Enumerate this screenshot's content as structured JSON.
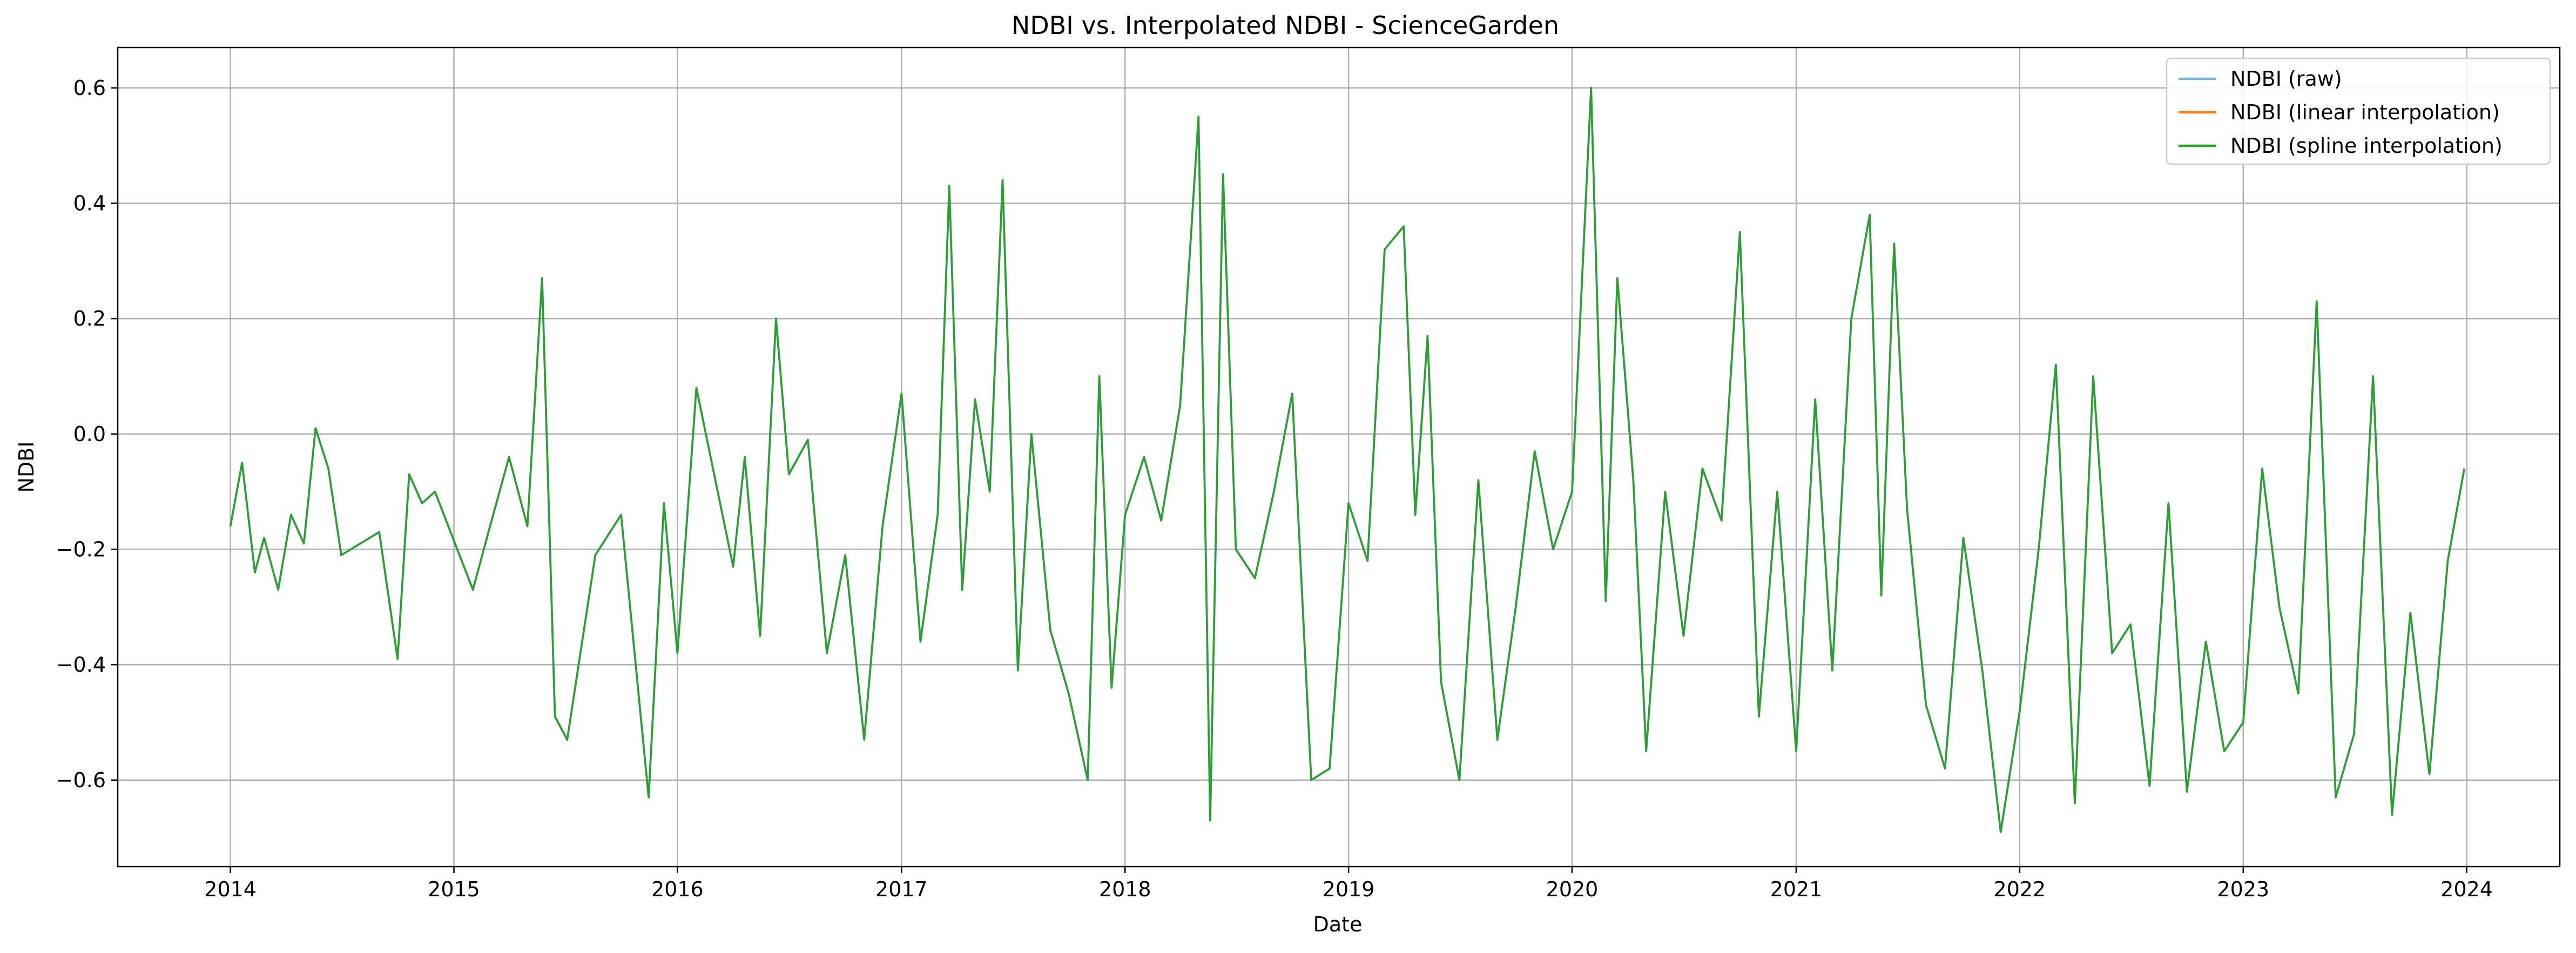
{
  "chart_data": {
    "type": "line",
    "title": "NDBI vs. Interpolated NDBI - ScienceGarden",
    "xlabel": "Date",
    "ylabel": "NDBI",
    "x_axis_type": "date",
    "xlim": [
      "2013-07-01",
      "2024-06-01"
    ],
    "ylim": [
      -0.75,
      0.67
    ],
    "x_ticks": [
      "2014",
      "2015",
      "2016",
      "2017",
      "2018",
      "2019",
      "2020",
      "2021",
      "2022",
      "2023",
      "2024"
    ],
    "y_ticks": [
      -0.6,
      -0.4,
      -0.2,
      0.0,
      0.2,
      0.4,
      0.6
    ],
    "y_tick_labels": [
      "−0.6",
      "−0.4",
      "−0.2",
      "0.0",
      "0.2",
      "0.4",
      "0.6"
    ],
    "grid": true,
    "legend_position": "top-right",
    "series_colors": {
      "raw": "#7ab3dd",
      "linear": "#ff7f0e",
      "spline": "#2ca02c"
    },
    "series": [
      {
        "name": "NDBI (raw)",
        "key": "raw",
        "x": [
          "2014-01-01",
          "2014-01-20",
          "2014-02-10",
          "2014-02-25",
          "2014-03-20",
          "2014-04-10",
          "2014-05-01",
          "2014-05-20",
          "2014-06-10",
          "2014-07-01",
          "2014-09-01",
          "2014-10-01",
          "2014-10-20",
          "2014-11-10",
          "2014-12-01",
          "2015-02-01",
          "2015-03-01",
          "2015-04-01",
          "2015-05-01",
          "2015-05-25",
          "2015-06-15",
          "2015-07-05",
          "2015-08-20",
          "2015-10-01",
          "2015-11-15",
          "2015-12-10",
          "2016-01-01",
          "2016-02-01",
          "2016-03-01",
          "2016-04-01",
          "2016-04-20",
          "2016-05-15",
          "2016-06-10",
          "2016-07-01",
          "2016-08-01",
          "2016-09-01",
          "2016-10-01",
          "2016-11-01",
          "2016-12-01",
          "2017-01-01",
          "2017-02-01",
          "2017-03-01",
          "2017-03-20",
          "2017-04-10",
          "2017-05-01",
          "2017-05-25",
          "2017-06-15",
          "2017-07-10",
          "2017-08-01",
          "2017-09-01",
          "2017-10-01",
          "2017-11-01",
          "2017-11-20",
          "2017-12-10",
          "2018-01-01",
          "2018-02-01",
          "2018-03-01",
          "2018-04-01",
          "2018-05-01",
          "2018-05-20",
          "2018-06-10",
          "2018-07-01",
          "2018-08-01",
          "2018-09-01",
          "2018-10-01",
          "2018-11-01",
          "2018-12-01",
          "2019-01-01",
          "2019-02-01",
          "2019-03-01",
          "2019-04-01",
          "2019-04-20",
          "2019-05-10",
          "2019-06-01",
          "2019-07-01",
          "2019-08-01",
          "2019-09-01",
          "2019-10-01",
          "2019-11-01",
          "2019-12-01",
          "2020-01-01",
          "2020-02-01",
          "2020-02-25",
          "2020-03-15",
          "2020-04-10",
          "2020-05-01",
          "2020-06-01",
          "2020-07-01",
          "2020-08-01",
          "2020-09-01",
          "2020-10-01",
          "2020-11-01",
          "2020-12-01",
          "2021-01-01",
          "2021-02-01",
          "2021-03-01",
          "2021-04-01",
          "2021-05-01",
          "2021-05-20",
          "2021-06-10",
          "2021-07-01",
          "2021-08-01",
          "2021-09-01",
          "2021-10-01",
          "2021-11-01",
          "2021-12-01",
          "2022-01-01",
          "2022-02-01",
          "2022-03-01",
          "2022-04-01",
          "2022-05-01",
          "2022-06-01",
          "2022-07-01",
          "2022-08-01",
          "2022-09-01",
          "2022-10-01",
          "2022-11-01",
          "2022-12-01",
          "2023-01-01",
          "2023-02-01",
          "2023-03-01",
          "2023-04-01",
          "2023-05-01",
          "2023-06-01",
          "2023-07-01",
          "2023-08-01",
          "2023-09-01",
          "2023-10-01",
          "2023-11-01",
          "2023-12-01",
          "2023-12-28"
        ],
        "y": [
          -0.16,
          -0.05,
          -0.24,
          -0.18,
          -0.27,
          -0.14,
          -0.19,
          0.01,
          -0.06,
          -0.21,
          -0.17,
          -0.39,
          -0.07,
          -0.12,
          -0.1,
          -0.27,
          -0.16,
          -0.04,
          -0.16,
          0.27,
          -0.49,
          -0.53,
          -0.21,
          -0.14,
          -0.63,
          -0.12,
          -0.38,
          0.08,
          -0.07,
          -0.23,
          -0.04,
          -0.35,
          0.2,
          -0.07,
          -0.01,
          -0.38,
          -0.21,
          -0.53,
          -0.16,
          0.07,
          -0.36,
          -0.14,
          0.43,
          -0.27,
          0.06,
          -0.1,
          0.44,
          -0.41,
          0.0,
          -0.34,
          -0.45,
          -0.6,
          0.1,
          -0.44,
          -0.14,
          -0.04,
          -0.15,
          0.05,
          0.55,
          -0.67,
          0.45,
          -0.2,
          -0.25,
          -0.1,
          0.07,
          -0.6,
          -0.58,
          -0.12,
          -0.22,
          0.32,
          0.36,
          -0.14,
          0.17,
          -0.43,
          -0.6,
          -0.08,
          -0.53,
          -0.3,
          -0.03,
          -0.2,
          -0.1,
          0.6,
          -0.29,
          0.27,
          -0.08,
          -0.55,
          -0.1,
          -0.35,
          -0.06,
          -0.15,
          0.35,
          -0.49,
          -0.1,
          -0.55,
          0.06,
          -0.41,
          0.2,
          0.38,
          -0.28,
          0.33,
          -0.13,
          -0.47,
          -0.58,
          -0.18,
          -0.41,
          -0.69,
          -0.48,
          -0.2,
          0.12,
          -0.64,
          0.1,
          -0.38,
          -0.33,
          -0.61,
          -0.12,
          -0.62,
          -0.36,
          -0.55,
          -0.5,
          -0.06,
          -0.3,
          -0.45,
          0.23,
          -0.63,
          -0.52,
          0.1,
          -0.66,
          -0.31,
          -0.59,
          -0.22,
          -0.06
        ]
      },
      {
        "name": "NDBI (linear interpolation)",
        "key": "linear",
        "x": [
          "2014-01-01",
          "2014-01-20",
          "2014-02-10",
          "2014-02-25",
          "2014-03-20",
          "2014-04-10",
          "2014-05-01",
          "2014-05-20",
          "2014-06-10",
          "2014-07-01",
          "2014-09-01",
          "2014-10-01",
          "2014-10-20",
          "2014-11-10",
          "2014-12-01",
          "2015-02-01",
          "2015-03-01",
          "2015-04-01",
          "2015-05-01",
          "2015-05-25",
          "2015-06-15",
          "2015-07-05",
          "2015-08-20",
          "2015-10-01",
          "2015-11-15",
          "2015-12-10",
          "2016-01-01",
          "2016-02-01",
          "2016-03-01",
          "2016-04-01",
          "2016-04-20",
          "2016-05-15",
          "2016-06-10",
          "2016-07-01",
          "2016-08-01",
          "2016-09-01",
          "2016-10-01",
          "2016-11-01",
          "2016-12-01",
          "2017-01-01",
          "2017-02-01",
          "2017-03-01",
          "2017-03-20",
          "2017-04-10",
          "2017-05-01",
          "2017-05-25",
          "2017-06-15",
          "2017-07-10",
          "2017-08-01",
          "2017-09-01",
          "2017-10-01",
          "2017-11-01",
          "2017-11-20",
          "2017-12-10",
          "2018-01-01",
          "2018-02-01",
          "2018-03-01",
          "2018-04-01",
          "2018-05-01",
          "2018-05-20",
          "2018-06-10",
          "2018-07-01",
          "2018-08-01",
          "2018-09-01",
          "2018-10-01",
          "2018-11-01",
          "2018-12-01",
          "2019-01-01",
          "2019-02-01",
          "2019-03-01",
          "2019-04-01",
          "2019-04-20",
          "2019-05-10",
          "2019-06-01",
          "2019-07-01",
          "2019-08-01",
          "2019-09-01",
          "2019-10-01",
          "2019-11-01",
          "2019-12-01",
          "2020-01-01",
          "2020-02-01",
          "2020-02-25",
          "2020-03-15",
          "2020-04-10",
          "2020-05-01",
          "2020-06-01",
          "2020-07-01",
          "2020-08-01",
          "2020-09-01",
          "2020-10-01",
          "2020-11-01",
          "2020-12-01",
          "2021-01-01",
          "2021-02-01",
          "2021-03-01",
          "2021-04-01",
          "2021-05-01",
          "2021-05-20",
          "2021-06-10",
          "2021-07-01",
          "2021-08-01",
          "2021-09-01",
          "2021-10-01",
          "2021-11-01",
          "2021-12-01",
          "2022-01-01",
          "2022-02-01",
          "2022-03-01",
          "2022-04-01",
          "2022-05-01",
          "2022-06-01",
          "2022-07-01",
          "2022-08-01",
          "2022-09-01",
          "2022-10-01",
          "2022-11-01",
          "2022-12-01",
          "2023-01-01",
          "2023-02-01",
          "2023-03-01",
          "2023-04-01",
          "2023-05-01",
          "2023-06-01",
          "2023-07-01",
          "2023-08-01",
          "2023-09-01",
          "2023-10-01",
          "2023-11-01",
          "2023-12-01",
          "2023-12-28"
        ],
        "y": [
          -0.16,
          -0.05,
          -0.24,
          -0.18,
          -0.27,
          -0.14,
          -0.19,
          0.01,
          -0.06,
          -0.21,
          -0.17,
          -0.39,
          -0.07,
          -0.12,
          -0.1,
          -0.27,
          -0.16,
          -0.04,
          -0.16,
          0.27,
          -0.49,
          -0.53,
          -0.21,
          -0.14,
          -0.63,
          -0.12,
          -0.38,
          0.08,
          -0.07,
          -0.23,
          -0.04,
          -0.35,
          0.2,
          -0.07,
          -0.01,
          -0.38,
          -0.21,
          -0.53,
          -0.16,
          0.07,
          -0.36,
          -0.14,
          0.43,
          -0.27,
          0.06,
          -0.1,
          0.44,
          -0.41,
          0.0,
          -0.34,
          -0.45,
          -0.6,
          0.1,
          -0.44,
          -0.14,
          -0.04,
          -0.15,
          0.05,
          0.55,
          -0.67,
          0.45,
          -0.2,
          -0.25,
          -0.1,
          0.07,
          -0.6,
          -0.58,
          -0.12,
          -0.22,
          0.32,
          0.36,
          -0.14,
          0.17,
          -0.43,
          -0.6,
          -0.08,
          -0.53,
          -0.3,
          -0.03,
          -0.2,
          -0.1,
          0.6,
          -0.29,
          0.27,
          -0.08,
          -0.55,
          -0.1,
          -0.35,
          -0.06,
          -0.15,
          0.35,
          -0.49,
          -0.1,
          -0.55,
          0.06,
          -0.41,
          0.2,
          0.38,
          -0.28,
          0.33,
          -0.13,
          -0.47,
          -0.58,
          -0.18,
          -0.41,
          -0.69,
          -0.48,
          -0.2,
          0.12,
          -0.64,
          0.1,
          -0.38,
          -0.33,
          -0.61,
          -0.12,
          -0.62,
          -0.36,
          -0.55,
          -0.5,
          -0.06,
          -0.3,
          -0.45,
          0.23,
          -0.63,
          -0.52,
          0.1,
          -0.66,
          -0.31,
          -0.59,
          -0.22,
          -0.06
        ]
      },
      {
        "name": "NDBI (spline interpolation)",
        "key": "spline",
        "x": [
          "2014-01-01",
          "2014-01-20",
          "2014-02-10",
          "2014-02-25",
          "2014-03-20",
          "2014-04-10",
          "2014-05-01",
          "2014-05-20",
          "2014-06-10",
          "2014-07-01",
          "2014-09-01",
          "2014-10-01",
          "2014-10-20",
          "2014-11-10",
          "2014-12-01",
          "2015-02-01",
          "2015-03-01",
          "2015-04-01",
          "2015-05-01",
          "2015-05-25",
          "2015-06-15",
          "2015-07-05",
          "2015-08-20",
          "2015-10-01",
          "2015-11-15",
          "2015-12-10",
          "2016-01-01",
          "2016-02-01",
          "2016-03-01",
          "2016-04-01",
          "2016-04-20",
          "2016-05-15",
          "2016-06-10",
          "2016-07-01",
          "2016-08-01",
          "2016-09-01",
          "2016-10-01",
          "2016-11-01",
          "2016-12-01",
          "2017-01-01",
          "2017-02-01",
          "2017-03-01",
          "2017-03-20",
          "2017-04-10",
          "2017-05-01",
          "2017-05-25",
          "2017-06-15",
          "2017-07-10",
          "2017-08-01",
          "2017-09-01",
          "2017-10-01",
          "2017-11-01",
          "2017-11-20",
          "2017-12-10",
          "2018-01-01",
          "2018-02-01",
          "2018-03-01",
          "2018-04-01",
          "2018-05-01",
          "2018-05-20",
          "2018-06-10",
          "2018-07-01",
          "2018-08-01",
          "2018-09-01",
          "2018-10-01",
          "2018-11-01",
          "2018-12-01",
          "2019-01-01",
          "2019-02-01",
          "2019-03-01",
          "2019-04-01",
          "2019-04-20",
          "2019-05-10",
          "2019-06-01",
          "2019-07-01",
          "2019-08-01",
          "2019-09-01",
          "2019-10-01",
          "2019-11-01",
          "2019-12-01",
          "2020-01-01",
          "2020-02-01",
          "2020-02-25",
          "2020-03-15",
          "2020-04-10",
          "2020-05-01",
          "2020-06-01",
          "2020-07-01",
          "2020-08-01",
          "2020-09-01",
          "2020-10-01",
          "2020-11-01",
          "2020-12-01",
          "2021-01-01",
          "2021-02-01",
          "2021-03-01",
          "2021-04-01",
          "2021-05-01",
          "2021-05-20",
          "2021-06-10",
          "2021-07-01",
          "2021-08-01",
          "2021-09-01",
          "2021-10-01",
          "2021-11-01",
          "2021-12-01",
          "2022-01-01",
          "2022-02-01",
          "2022-03-01",
          "2022-04-01",
          "2022-05-01",
          "2022-06-01",
          "2022-07-01",
          "2022-08-01",
          "2022-09-01",
          "2022-10-01",
          "2022-11-01",
          "2022-12-01",
          "2023-01-01",
          "2023-02-01",
          "2023-03-01",
          "2023-04-01",
          "2023-05-01",
          "2023-06-01",
          "2023-07-01",
          "2023-08-01",
          "2023-09-01",
          "2023-10-01",
          "2023-11-01",
          "2023-12-01",
          "2023-12-28"
        ],
        "y": [
          -0.16,
          -0.05,
          -0.24,
          -0.18,
          -0.27,
          -0.14,
          -0.19,
          0.01,
          -0.06,
          -0.21,
          -0.17,
          -0.39,
          -0.07,
          -0.12,
          -0.1,
          -0.27,
          -0.16,
          -0.04,
          -0.16,
          0.27,
          -0.49,
          -0.53,
          -0.21,
          -0.14,
          -0.63,
          -0.12,
          -0.38,
          0.08,
          -0.07,
          -0.23,
          -0.04,
          -0.35,
          0.2,
          -0.07,
          -0.01,
          -0.38,
          -0.21,
          -0.53,
          -0.16,
          0.07,
          -0.36,
          -0.14,
          0.43,
          -0.27,
          0.06,
          -0.1,
          0.44,
          -0.41,
          0.0,
          -0.34,
          -0.45,
          -0.6,
          0.1,
          -0.44,
          -0.14,
          -0.04,
          -0.15,
          0.05,
          0.55,
          -0.67,
          0.45,
          -0.2,
          -0.25,
          -0.1,
          0.07,
          -0.6,
          -0.58,
          -0.12,
          -0.22,
          0.32,
          0.36,
          -0.14,
          0.17,
          -0.43,
          -0.6,
          -0.08,
          -0.53,
          -0.3,
          -0.03,
          -0.2,
          -0.1,
          0.6,
          -0.29,
          0.27,
          -0.08,
          -0.55,
          -0.1,
          -0.35,
          -0.06,
          -0.15,
          0.35,
          -0.49,
          -0.1,
          -0.55,
          0.06,
          -0.41,
          0.2,
          0.38,
          -0.28,
          0.33,
          -0.13,
          -0.47,
          -0.58,
          -0.18,
          -0.41,
          -0.69,
          -0.48,
          -0.2,
          0.12,
          -0.64,
          0.1,
          -0.38,
          -0.33,
          -0.61,
          -0.12,
          -0.62,
          -0.36,
          -0.55,
          -0.5,
          -0.06,
          -0.3,
          -0.45,
          0.23,
          -0.63,
          -0.52,
          0.1,
          -0.66,
          -0.31,
          -0.59,
          -0.22,
          -0.06
        ]
      }
    ]
  }
}
